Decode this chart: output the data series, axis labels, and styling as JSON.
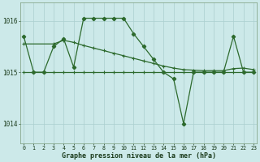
{
  "line1_x": [
    0,
    1,
    2,
    3,
    4,
    5,
    6,
    7,
    8,
    9,
    10,
    11,
    12,
    13,
    14,
    15,
    16,
    17,
    18,
    19,
    20,
    21,
    22,
    23
  ],
  "line1_y": [
    1015.7,
    1015.0,
    1015.0,
    1015.5,
    1015.65,
    1015.1,
    1016.05,
    1016.05,
    1016.05,
    1016.05,
    1016.05,
    1015.75,
    1015.5,
    1015.25,
    1015.0,
    1014.87,
    1014.0,
    1015.0,
    1015.0,
    1015.0,
    1015.0,
    1015.7,
    1015.0,
    1015.0
  ],
  "line2_x": [
    0,
    3,
    4,
    5,
    6,
    7,
    8,
    9,
    10,
    11,
    12,
    13,
    14,
    15,
    16,
    17,
    18,
    19,
    20,
    21,
    22,
    23
  ],
  "line2_y": [
    1015.55,
    1015.55,
    1015.62,
    1015.58,
    1015.52,
    1015.47,
    1015.42,
    1015.37,
    1015.32,
    1015.27,
    1015.22,
    1015.17,
    1015.12,
    1015.08,
    1015.05,
    1015.04,
    1015.03,
    1015.03,
    1015.03,
    1015.07,
    1015.08,
    1015.05
  ],
  "line3_x": [
    0,
    1,
    2,
    3,
    4,
    5,
    6,
    7,
    8,
    9,
    10,
    11,
    12,
    13,
    14,
    15,
    16,
    17,
    18,
    19,
    20,
    21,
    22,
    23
  ],
  "line3_y": [
    1015.0,
    1015.0,
    1015.0,
    1015.0,
    1015.0,
    1015.0,
    1015.0,
    1015.0,
    1015.0,
    1015.0,
    1015.0,
    1015.0,
    1015.0,
    1015.0,
    1015.0,
    1015.0,
    1015.0,
    1015.0,
    1015.0,
    1015.0,
    1015.0,
    1015.0,
    1015.0,
    1015.0
  ],
  "line_color": "#2d6a2d",
  "bg_color": "#cce9e9",
  "grid_color": "#aacfcf",
  "xlabel": "Graphe pression niveau de la mer (hPa)",
  "yticks": [
    1014,
    1015,
    1016
  ],
  "xtick_labels": [
    "0",
    "1",
    "2",
    "3",
    "4",
    "5",
    "6",
    "7",
    "8",
    "9",
    "10",
    "11",
    "12",
    "13",
    "14",
    "15",
    "16",
    "17",
    "18",
    "19",
    "20",
    "21",
    "22",
    "23"
  ],
  "xticks": [
    0,
    1,
    2,
    3,
    4,
    5,
    6,
    7,
    8,
    9,
    10,
    11,
    12,
    13,
    14,
    15,
    16,
    17,
    18,
    19,
    20,
    21,
    22,
    23
  ],
  "ylim": [
    1013.62,
    1016.35
  ],
  "xlim": [
    -0.3,
    23.3
  ]
}
